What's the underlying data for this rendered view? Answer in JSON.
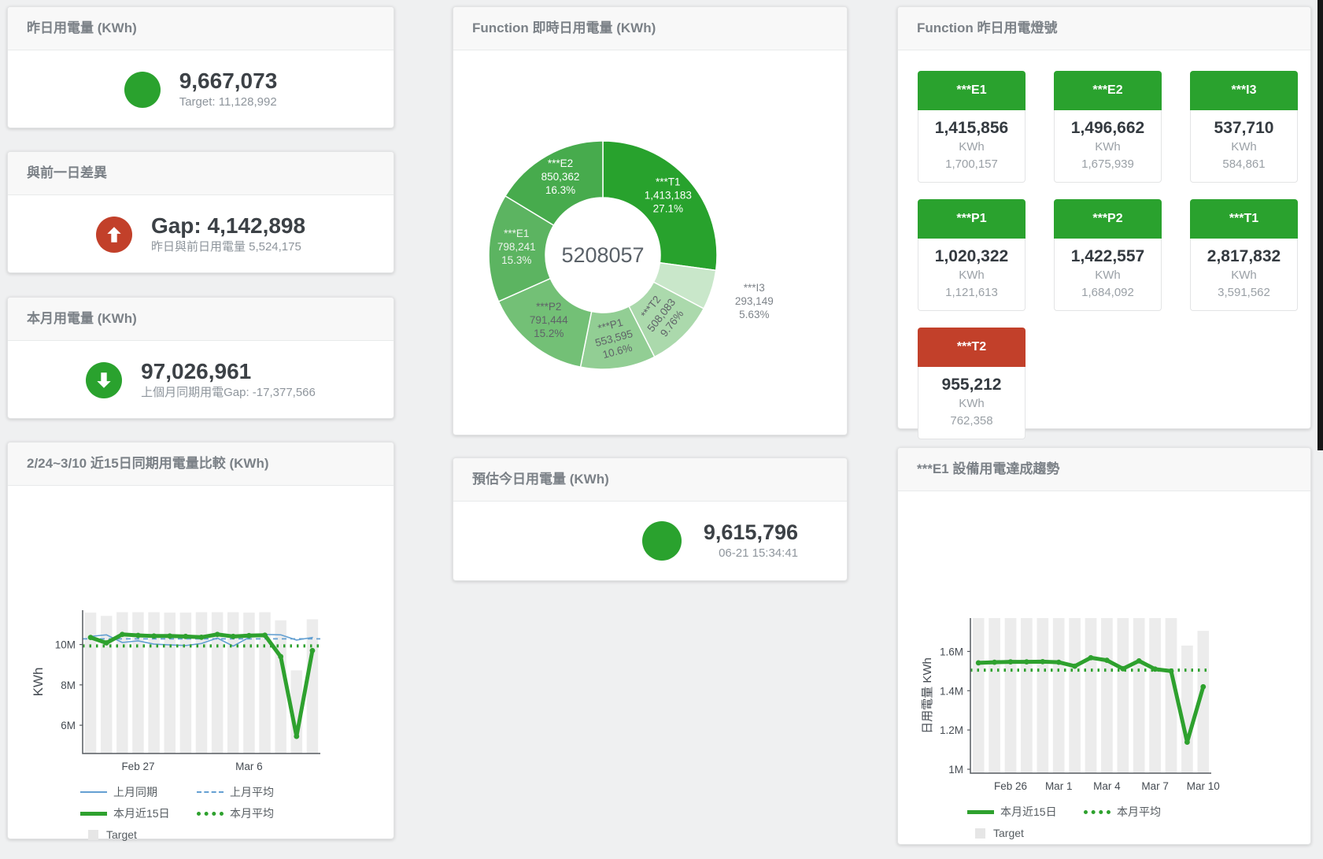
{
  "colors": {
    "ok": "#2aa22e",
    "alert": "#c2402a",
    "bar_gray": "#ececec",
    "blue_line": "#64a0d2",
    "green_line": "#2ea12e"
  },
  "cards": {
    "yesterday": {
      "title": "昨日用電量 (KWh)",
      "value": "9,667,073",
      "subtitle": "Target: 11,128,992"
    },
    "gap_prev_day": {
      "title": "與前一日差異",
      "value": "Gap: 4,142,898",
      "subtitle": "昨日與前日用電量 5,524,175"
    },
    "month": {
      "title": "本月用電量 (KWh)",
      "value": "97,026,961",
      "subtitle": "上個月同期用電Gap: -17,377,566"
    },
    "donut": {
      "title": "Function 即時日用電量 (KWh)"
    },
    "estimate": {
      "title": "預估今日用電量 (KWh)",
      "value": "9,615,796",
      "subtitle": "06-21 15:34:41"
    },
    "lights": {
      "title": "Function 昨日用電燈號",
      "unit": "KWh"
    },
    "compare_chart": {
      "title": "2/24~3/10 近15日同期用電量比較 (KWh)"
    },
    "trend_chart": {
      "title": "***E1 設備用電達成趨勢"
    }
  },
  "lights_tiles": [
    {
      "label": "***E1",
      "value": "1,415,856",
      "target": "1,700,157",
      "status": "ok"
    },
    {
      "label": "***E2",
      "value": "1,496,662",
      "target": "1,675,939",
      "status": "ok"
    },
    {
      "label": "***I3",
      "value": "537,710",
      "target": "584,861",
      "status": "ok"
    },
    {
      "label": "***P1",
      "value": "1,020,322",
      "target": "1,121,613",
      "status": "ok"
    },
    {
      "label": "***P2",
      "value": "1,422,557",
      "target": "1,684,092",
      "status": "ok"
    },
    {
      "label": "***T1",
      "value": "2,817,832",
      "target": "3,591,562",
      "status": "ok"
    },
    {
      "label": "***T2",
      "value": "955,212",
      "target": "762,358",
      "status": "alert"
    }
  ],
  "chart_data": [
    {
      "type": "pie",
      "title": "Function 即時日用電量 (KWh)",
      "center_total": "5208057",
      "slices": [
        {
          "name": "***T1",
          "value": 1413183,
          "value_label": "1,413,183",
          "pct_label": "27.1%",
          "color": "#28a22d",
          "label_color": "#ffffff",
          "label_pos": "inside",
          "rotate": 0
        },
        {
          "name": "***I3",
          "value": 293149,
          "value_label": "293,149",
          "pct_label": "5.63%",
          "color": "#c9e7ca",
          "label_color": "#7d8389",
          "label_pos": "outside",
          "rotate": 0
        },
        {
          "name": "***T2",
          "value": 508083,
          "value_label": "508,083",
          "pct_label": "9.76%",
          "color": "#abd9ac",
          "label_color": "#5f6368",
          "label_pos": "inside",
          "rotate": -52
        },
        {
          "name": "***P1",
          "value": 553595,
          "value_label": "553,595",
          "pct_label": "10.6%",
          "color": "#92ce94",
          "label_color": "#5f6368",
          "label_pos": "inside",
          "rotate": -15
        },
        {
          "name": "***P2",
          "value": 791444,
          "value_label": "791,444",
          "pct_label": "15.2%",
          "color": "#73c076",
          "label_color": "#5f6368",
          "label_pos": "inside",
          "rotate": 0
        },
        {
          "name": "***E1",
          "value": 798241,
          "value_label": "798,241",
          "pct_label": "15.3%",
          "color": "#5cb461",
          "label_color": "#edf4ed",
          "label_pos": "inside",
          "rotate": 0
        },
        {
          "name": "***E2",
          "value": 850362,
          "value_label": "850,362",
          "pct_label": "16.3%",
          "color": "#47ab4d",
          "label_color": "#ffffff",
          "label_pos": "inside",
          "rotate": 0
        }
      ]
    },
    {
      "type": "line",
      "title": "2/24~3/10 近15日同期用電量比較 (KWh)",
      "ylabel": "KWh",
      "ylim": [
        4600000,
        11700000
      ],
      "y_ticks": [
        {
          "v": 6000000,
          "label": "6M"
        },
        {
          "v": 8000000,
          "label": "8M"
        },
        {
          "v": 10000000,
          "label": "10M"
        }
      ],
      "x_ticks": [
        {
          "i": 3,
          "label": "Feb 27"
        },
        {
          "i": 10,
          "label": "Mar 6"
        }
      ],
      "target_bars": {
        "name": "Target",
        "color": "#ececec",
        "values": [
          11580000,
          11420000,
          11600000,
          11600000,
          11600000,
          11580000,
          11580000,
          11600000,
          11600000,
          11600000,
          11580000,
          11600000,
          11200000,
          8720000,
          11250000
        ]
      },
      "series": [
        {
          "name": "上月同期",
          "style": "solid",
          "color": "#64a0d2",
          "width": 1.6,
          "values": [
            10400000,
            10480000,
            10100000,
            10180000,
            10020000,
            9980000,
            9950000,
            10050000,
            10320000,
            9920000,
            10350000,
            10500000,
            10480000,
            10220000,
            10350000
          ]
        },
        {
          "name": "上月平均",
          "style": "dashed",
          "color": "#64a0d2",
          "width": 1.8,
          "avg": 10280000
        },
        {
          "name": "本月近15日",
          "style": "solid",
          "color": "#2ea12e",
          "width": 5,
          "markers": true,
          "values": [
            10350000,
            10080000,
            10500000,
            10450000,
            10420000,
            10420000,
            10400000,
            10360000,
            10500000,
            10400000,
            10440000,
            10460000,
            9400000,
            5450000,
            9700000
          ]
        },
        {
          "name": "本月平均",
          "style": "dotted",
          "color": "#2ea12e",
          "width": 4,
          "avg": 9930000
        }
      ],
      "legend_rows": [
        [
          {
            "label": "上月同期",
            "swatch": "line",
            "color": "#64a0d2"
          },
          {
            "label": "上月平均",
            "swatch": "dash",
            "color": "#64a0d2"
          }
        ],
        [
          {
            "label": "本月近15日",
            "swatch": "thick",
            "color": "#2ea12e"
          },
          {
            "label": "本月平均",
            "swatch": "dot",
            "color": "#2ea12e"
          }
        ],
        [
          {
            "label": "Target",
            "swatch": "square",
            "color": "#e6e6e6"
          }
        ]
      ]
    },
    {
      "type": "line",
      "title": "***E1 設備用電達成趨勢",
      "ylabel": "日用電量 KWh",
      "ylim": [
        980000,
        1770000
      ],
      "y_ticks": [
        {
          "v": 1000000,
          "label": "1M"
        },
        {
          "v": 1200000,
          "label": "1.2M"
        },
        {
          "v": 1400000,
          "label": "1.4M"
        },
        {
          "v": 1600000,
          "label": "1.6M"
        }
      ],
      "x_ticks": [
        {
          "i": 2,
          "label": "Feb 26"
        },
        {
          "i": 5,
          "label": "Mar 1"
        },
        {
          "i": 8,
          "label": "Mar 4"
        },
        {
          "i": 11,
          "label": "Mar 7"
        },
        {
          "i": 14,
          "label": "Mar 10"
        }
      ],
      "target_bars": {
        "name": "Target",
        "color": "#ececec",
        "values": [
          1770000,
          1770000,
          1770000,
          1770000,
          1770000,
          1770000,
          1770000,
          1770000,
          1770000,
          1770000,
          1770000,
          1770000,
          1770000,
          1630000,
          1705000
        ]
      },
      "series": [
        {
          "name": "本月近15日",
          "style": "solid",
          "color": "#2ea12e",
          "width": 5,
          "markers": true,
          "values": [
            1542000,
            1545000,
            1547000,
            1547000,
            1548000,
            1545000,
            1525000,
            1568000,
            1555000,
            1512000,
            1552000,
            1510000,
            1500000,
            1138000,
            1420000
          ]
        },
        {
          "name": "本月平均",
          "style": "dotted",
          "color": "#2ea12e",
          "width": 4,
          "avg": 1505000
        }
      ],
      "legend_rows": [
        [
          {
            "label": "本月近15日",
            "swatch": "thick",
            "color": "#2ea12e"
          },
          {
            "label": "本月平均",
            "swatch": "dot",
            "color": "#2ea12e"
          }
        ],
        [
          {
            "label": "Target",
            "swatch": "square",
            "color": "#e6e6e6"
          }
        ]
      ]
    }
  ]
}
